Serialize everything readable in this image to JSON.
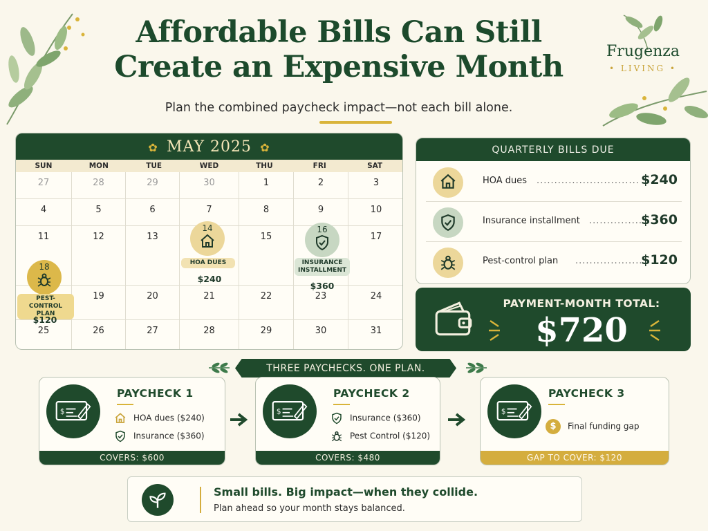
{
  "title_line1": "Affordable Bills Can Still",
  "title_line2": "Create an Expensive Month",
  "subtitle": "Plan the combined paycheck impact—not each bill alone.",
  "brand": {
    "name": "Frugenza",
    "sub": "• LIVING •"
  },
  "calendar": {
    "month": "MAY 2025",
    "days_of_week": [
      "SUN",
      "MON",
      "TUE",
      "WED",
      "THU",
      "FRI",
      "SAT"
    ],
    "weeks": [
      [
        "27",
        "28",
        "29",
        "30",
        "1",
        "2",
        "3"
      ],
      [
        "4",
        "5",
        "6",
        "7",
        "8",
        "9",
        "10"
      ],
      [
        "11",
        "12",
        "13",
        "",
        "15",
        "",
        "17"
      ],
      [
        "",
        "19",
        "20",
        "21",
        "22",
        "23",
        "24"
      ],
      [
        "25",
        "26",
        "27",
        "28",
        "29",
        "30",
        "31"
      ]
    ],
    "muted": [
      "27",
      "28",
      "29",
      "30"
    ],
    "events": [
      {
        "day": "14",
        "label": "HOA DUES",
        "amount": "$240",
        "icon": "house-icon"
      },
      {
        "day": "16",
        "label_line1": "INSURANCE",
        "label_line2": "INSTALLMENT",
        "amount": "$360",
        "icon": "shield-icon"
      },
      {
        "day": "18",
        "label_line1": "PEST-CONTROL",
        "label_line2": "PLAN",
        "amount": "$120",
        "icon": "bug-icon"
      }
    ]
  },
  "quarterly": {
    "header": "QUARTERLY BILLS DUE",
    "items": [
      {
        "name": "HOA dues",
        "amount": "$240",
        "icon": "house-icon"
      },
      {
        "name": "Insurance installment",
        "amount": "$360",
        "icon": "shield-icon"
      },
      {
        "name": "Pest-control plan",
        "amount": "$120",
        "icon": "bug-icon"
      }
    ]
  },
  "total": {
    "label": "PAYMENT-MONTH TOTAL:",
    "amount": "$720",
    "icon": "wallet-icon"
  },
  "banner": "THREE PAYCHECKS. ONE PLAN.",
  "paychecks": [
    {
      "title": "PAYCHECK 1",
      "items": [
        "HOA dues ($240)",
        "Insurance ($360)"
      ],
      "footer": "COVERS: $600"
    },
    {
      "title": "PAYCHECK 2",
      "items": [
        "Insurance ($360)",
        "Pest Control ($120)"
      ],
      "footer": "COVERS: $480"
    },
    {
      "title": "PAYCHECK 3",
      "items": [
        "Final funding gap"
      ],
      "footer": "GAP TO COVER: $120"
    }
  ],
  "note": {
    "headline": "Small bills. Big impact—when they collide.",
    "body": "Plan ahead so your month stays balanced.",
    "icon": "sprout-icon"
  },
  "colors": {
    "dark_green": "#1f4a2c",
    "gold": "#d4ad3e",
    "cream": "#faf7ec",
    "sage": "#b8cfb5"
  }
}
